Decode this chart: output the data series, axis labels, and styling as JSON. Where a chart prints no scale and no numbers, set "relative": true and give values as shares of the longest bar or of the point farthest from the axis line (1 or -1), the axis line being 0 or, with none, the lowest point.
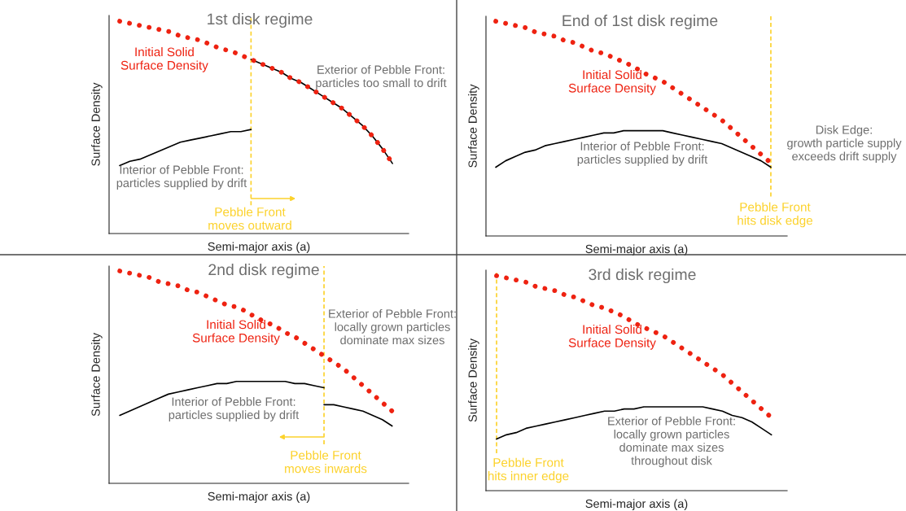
{
  "chart_data": [
    {
      "type": "line",
      "title": "1st disk regime",
      "xlabel": "Semi-major axis (a)",
      "ylabel": "Surface Density",
      "relative": true,
      "legend": "top left",
      "grid": false,
      "categories": [
        null,
        null,
        null,
        null,
        null,
        null,
        null,
        null,
        null,
        null,
        null,
        null,
        null,
        null,
        null,
        null,
        null,
        null,
        null,
        null,
        null,
        null,
        null,
        null,
        null,
        null,
        null,
        null
      ],
      "series": [
        {
          "name": "Initial Solid\nSurface Density",
          "line_style": "dotted",
          "color": "#ee2211",
          "values": [
            1.0,
            0.99,
            0.98,
            0.97,
            0.96,
            0.95,
            0.93,
            0.92,
            0.91,
            0.89,
            0.87,
            0.86,
            0.84,
            0.82,
            0.8,
            0.78,
            0.76,
            0.73,
            0.71,
            0.68,
            0.65,
            0.62,
            0.59,
            0.55,
            0.51,
            0.46,
            0.4,
            0.33
          ]
        },
        {
          "color": "#000000",
          "values": [
            0.32,
            0.34,
            0.35,
            0.37,
            0.39,
            0.41,
            0.43,
            0.44,
            0.45,
            0.46,
            0.47,
            0.48,
            0.48,
            0.49,
            null,
            null,
            null,
            null,
            null,
            null,
            null,
            null,
            null,
            null,
            null,
            null,
            null,
            null
          ]
        },
        {
          "color": "#000000",
          "values": [
            null,
            null,
            null,
            null,
            null,
            null,
            null,
            null,
            null,
            null,
            null,
            null,
            null,
            0.82,
            0.8,
            0.78,
            0.76,
            0.73,
            0.71,
            0.68,
            0.65,
            0.62,
            0.59,
            0.55,
            0.51,
            0.46,
            0.4,
            0.33
          ]
        }
      ],
      "ref_lines": [
        {
          "axis": "x",
          "label": "Pebble Front\nmoves outward",
          "color": "#fcd22c",
          "line_style": "dashed"
        }
      ],
      "annotations": [
        "Exterior of Pebble Front:\nparticles too small to drift",
        "Interior of Pebble Front:\nparticles supplied by drift"
      ]
    },
    {
      "type": "line",
      "title": "End of 1st disk regime",
      "xlabel": "Semi-major axis (a)",
      "ylabel": "Surface Density",
      "relative": true,
      "legend": "top",
      "grid": false,
      "categories": [
        null,
        null,
        null,
        null,
        null,
        null,
        null,
        null,
        null,
        null,
        null,
        null,
        null,
        null,
        null,
        null,
        null,
        null,
        null,
        null,
        null,
        null,
        null,
        null,
        null,
        null,
        null,
        null,
        null
      ],
      "series": [
        {
          "name": "Initial Solid\nSurface Density",
          "line_style": "dotted",
          "color": "#ee2211",
          "values": [
            1.0,
            0.99,
            0.98,
            0.97,
            0.95,
            0.94,
            0.93,
            0.91,
            0.9,
            0.88,
            0.86,
            0.85,
            0.83,
            0.81,
            0.79,
            0.76,
            0.74,
            0.72,
            0.69,
            0.66,
            0.63,
            0.6,
            0.57,
            0.54,
            0.5,
            0.46,
            0.42,
            0.38,
            0.34
          ]
        },
        {
          "color": "#000000",
          "values": [
            0.32,
            0.35,
            0.37,
            0.39,
            0.4,
            0.42,
            0.43,
            0.44,
            0.45,
            0.46,
            0.47,
            0.48,
            0.48,
            0.49,
            0.49,
            0.49,
            0.49,
            0.49,
            0.48,
            0.47,
            0.46,
            0.45,
            0.44,
            0.43,
            0.41,
            0.39,
            0.37,
            0.35,
            0.32
          ]
        }
      ],
      "ref_lines": [
        {
          "axis": "x",
          "label": "Pebble Front\nhits disk edge",
          "color": "#fcd22c",
          "line_style": "dashed"
        }
      ],
      "annotations": [
        "Interior of Pebble Front:\nparticles supplied by drift",
        "Disk Edge:\ngrowth particle supply\nexceeds drift supply"
      ]
    },
    {
      "type": "line",
      "title": "2nd disk regime",
      "xlabel": "Semi-major axis (a)",
      "ylabel": "Surface Density",
      "relative": true,
      "legend": "top",
      "grid": false,
      "categories": [
        null,
        null,
        null,
        null,
        null,
        null,
        null,
        null,
        null,
        null,
        null,
        null,
        null,
        null,
        null,
        null,
        null,
        null,
        null,
        null,
        null,
        null,
        null,
        null,
        null,
        null,
        null,
        null,
        null
      ],
      "series": [
        {
          "name": "Initial Solid\nSurface Density",
          "line_style": "dotted",
          "color": "#ee2211",
          "values": [
            1.0,
            0.99,
            0.98,
            0.97,
            0.95,
            0.94,
            0.93,
            0.91,
            0.9,
            0.88,
            0.86,
            0.84,
            0.83,
            0.81,
            0.78,
            0.76,
            0.74,
            0.71,
            0.69,
            0.66,
            0.63,
            0.6,
            0.57,
            0.54,
            0.5,
            0.46,
            0.42,
            0.38,
            0.34
          ]
        },
        {
          "color": "#000000",
          "values": [
            0.32,
            0.34,
            0.36,
            0.38,
            0.4,
            0.42,
            0.43,
            0.44,
            0.45,
            0.46,
            0.47,
            0.47,
            0.48,
            0.48,
            0.48,
            0.48,
            0.48,
            0.48,
            0.47,
            0.47,
            0.46,
            0.45,
            null,
            null,
            null,
            null,
            null,
            null,
            null
          ]
        },
        {
          "color": "#000000",
          "values": [
            null,
            null,
            null,
            null,
            null,
            null,
            null,
            null,
            null,
            null,
            null,
            null,
            null,
            null,
            null,
            null,
            null,
            null,
            null,
            null,
            null,
            0.37,
            0.37,
            0.36,
            0.35,
            0.34,
            0.32,
            0.3,
            0.27
          ]
        }
      ],
      "ref_lines": [
        {
          "axis": "x",
          "label": "Pebble Front\nmoves inwards",
          "color": "#fcd22c",
          "line_style": "dashed"
        }
      ],
      "annotations": [
        "Exterior of Pebble Front:\nlocally grown particles\ndominate max sizes",
        "Interior of Pebble Front:\nparticles supplied by drift"
      ]
    },
    {
      "type": "line",
      "title": "3rd disk regime",
      "xlabel": "Semi-major axis (a)",
      "ylabel": "Surface Density",
      "relative": true,
      "legend": "top",
      "grid": false,
      "categories": [
        null,
        null,
        null,
        null,
        null,
        null,
        null,
        null,
        null,
        null,
        null,
        null,
        null,
        null,
        null,
        null,
        null,
        null,
        null,
        null,
        null,
        null,
        null,
        null,
        null,
        null,
        null,
        null,
        null
      ],
      "series": [
        {
          "name": "Initial Solid\nSurface Density",
          "line_style": "dotted",
          "color": "#ee2211",
          "values": [
            1.0,
            0.99,
            0.98,
            0.97,
            0.95,
            0.94,
            0.93,
            0.91,
            0.9,
            0.88,
            0.86,
            0.85,
            0.83,
            0.81,
            0.78,
            0.76,
            0.74,
            0.72,
            0.69,
            0.66,
            0.63,
            0.6,
            0.57,
            0.54,
            0.5,
            0.46,
            0.42,
            0.38,
            0.34
          ]
        },
        {
          "color": "#000000",
          "values": [
            0.24,
            0.26,
            0.27,
            0.29,
            0.3,
            0.31,
            0.32,
            0.33,
            0.34,
            0.35,
            0.36,
            0.37,
            0.37,
            0.38,
            0.38,
            0.39,
            0.39,
            0.39,
            0.39,
            0.39,
            0.39,
            0.39,
            0.38,
            0.37,
            0.35,
            0.34,
            0.32,
            0.29,
            0.26
          ]
        }
      ],
      "ref_lines": [
        {
          "axis": "x",
          "label": "Pebble Front\nhits inner edge",
          "color": "#fcd22c",
          "line_style": "dashed"
        }
      ],
      "annotations": [
        "Exterior of Pebble Front:\nlocally grown particles\ndominate max sizes\nthroughout disk"
      ]
    }
  ]
}
